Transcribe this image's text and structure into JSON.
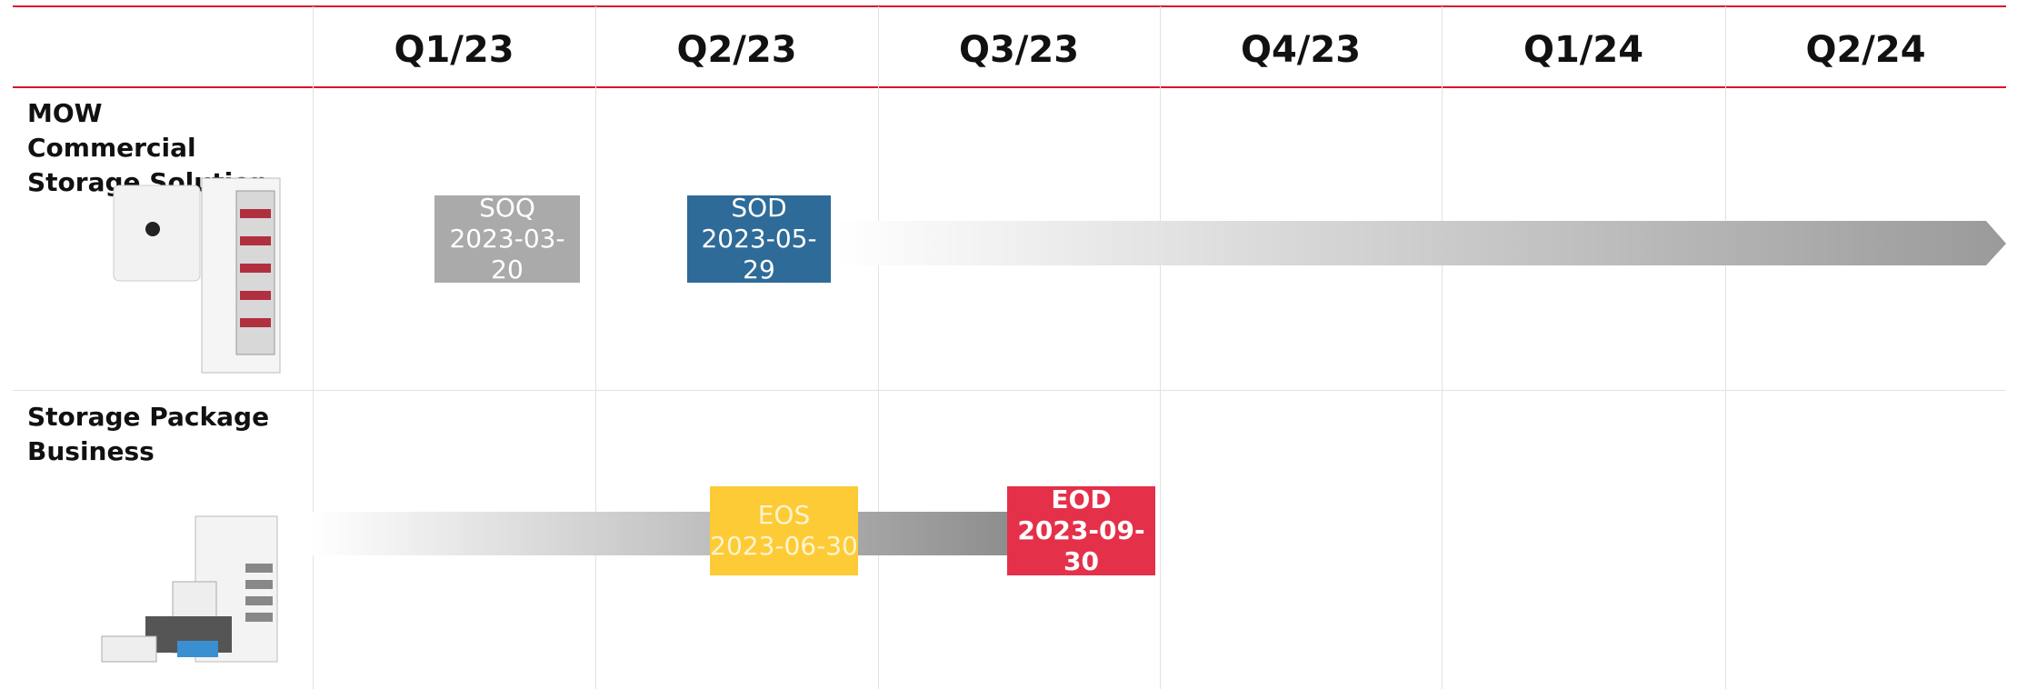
{
  "header": {
    "columns": [
      "Q1/23",
      "Q2/23",
      "Q3/23",
      "Q4/23",
      "Q1/24",
      "Q2/24"
    ]
  },
  "rows": [
    {
      "label": "MOW Commercial Storage Solution",
      "milestones": [
        {
          "label": "SOQ",
          "date": "2023-03-20"
        },
        {
          "label": "SOD",
          "date": "2023-05-29"
        }
      ]
    },
    {
      "label": "Storage Package Business",
      "milestones": [
        {
          "label": "EOS",
          "date": "2023-06-30"
        },
        {
          "label": "EOD",
          "date": "2023-09-30"
        }
      ]
    }
  ]
}
